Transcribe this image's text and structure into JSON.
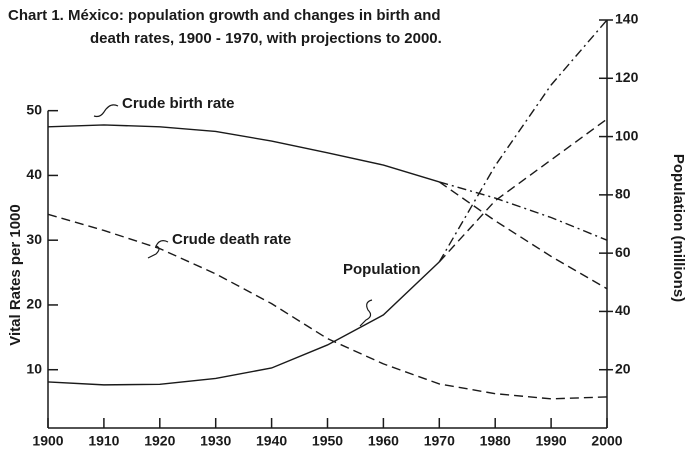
{
  "chart_data": {
    "type": "line",
    "title": "Chart 1. México: population growth and changes in birth and",
    "subtitle": "death rates, 1900 - 1970, with projections to 2000.",
    "y_label": "Vital Rates per 1000",
    "y2_label": "Population (millions)",
    "x": [
      1900,
      1910,
      1920,
      1930,
      1940,
      1950,
      1960,
      1970,
      1980,
      1990,
      2000
    ],
    "xlim": [
      1900,
      2000
    ],
    "xticks": [
      1900,
      1910,
      1920,
      1930,
      1940,
      1950,
      1960,
      1970,
      1980,
      1990,
      2000
    ],
    "ylim": [
      1,
      64
    ],
    "yticks": [
      10,
      20,
      30,
      40,
      50
    ],
    "y2lim": [
      0,
      140
    ],
    "y2ticks": [
      20,
      40,
      60,
      80,
      100,
      120,
      140
    ],
    "color": "#1a1a1a",
    "series": [
      {
        "name": "Crude birth rate",
        "values": [
          47.5,
          47.8,
          47.5,
          46.8,
          45.3,
          43.5,
          41.6,
          39,
          null,
          null,
          null
        ],
        "projections": [
          [
            null,
            null,
            null,
            null,
            null,
            null,
            null,
            39,
            36.5,
            33.5,
            30
          ],
          [
            null,
            null,
            null,
            null,
            null,
            null,
            null,
            39,
            33,
            27.5,
            22.5
          ]
        ]
      },
      {
        "name": "Crude death rate",
        "values": [
          34,
          31.5,
          28.7,
          24.8,
          20.2,
          14.8,
          10.9,
          7.8,
          6.3,
          5.5,
          5.8
        ],
        "dashed": true
      },
      {
        "name": "Population",
        "axis": "y2",
        "values": [
          15.8,
          14.8,
          15,
          17,
          20.6,
          28.5,
          38.8,
          57,
          null,
          null,
          null
        ],
        "projections": [
          [
            null,
            null,
            null,
            null,
            null,
            null,
            null,
            57,
            90,
            117.7,
            140
          ],
          [
            null,
            null,
            null,
            null,
            null,
            null,
            null,
            57,
            78,
            92,
            106
          ]
        ]
      }
    ]
  }
}
